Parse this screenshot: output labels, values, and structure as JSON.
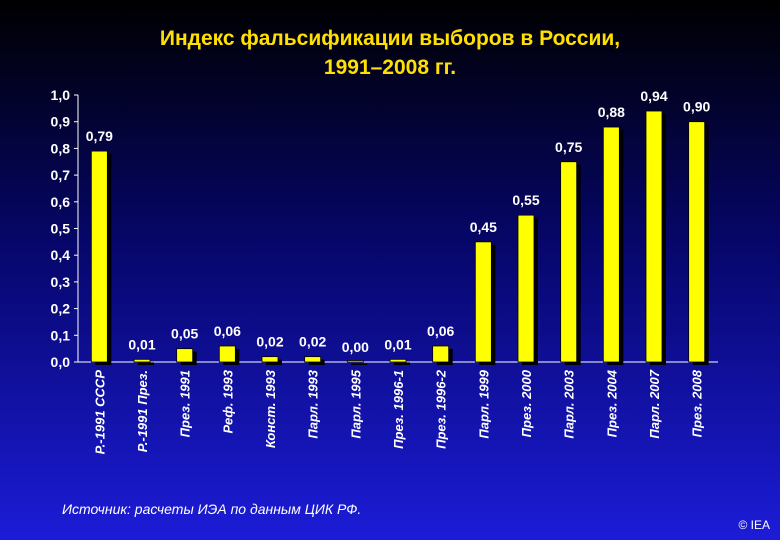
{
  "title_line1": "Индекс фальсификации выборов в России,",
  "title_line2": "1991–2008 гг.",
  "source": "Источник: расчеты ИЭА по данным ЦИК РФ.",
  "copyright": "© IEA",
  "colors": {
    "bar": "#ffff00",
    "bar_shadow": "#000000",
    "text": "#ffffff",
    "title": "#ffe000"
  },
  "chart_data": {
    "type": "bar",
    "title": "Индекс фальсификации выборов в России, 1991–2008 гг.",
    "xlabel": "",
    "ylabel": "",
    "ylim": [
      0,
      1.0
    ],
    "yticks": [
      "0,0",
      "0,1",
      "0,2",
      "0,3",
      "0,4",
      "0,5",
      "0,6",
      "0,7",
      "0,8",
      "0,9",
      "1,0"
    ],
    "grid": false,
    "categories": [
      "Р.-1991 СССР",
      "Р.-1991 През.",
      "През. 1991",
      "Реф. 1993",
      "Конст. 1993",
      "Парл. 1993",
      "Парл. 1995",
      "През. 1996-1",
      "През. 1996-2",
      "Парл. 1999",
      "През. 2000",
      "Парл. 2003",
      "През. 2004",
      "Парл. 2007",
      "През. 2008"
    ],
    "values": [
      0.79,
      0.01,
      0.05,
      0.06,
      0.02,
      0.02,
      0.0,
      0.01,
      0.06,
      0.45,
      0.55,
      0.75,
      0.88,
      0.94,
      0.9
    ],
    "data_labels": [
      "0,79",
      "0,01",
      "0,05",
      "0,06",
      "0,02",
      "0,02",
      "0,00",
      "0,01",
      "0,06",
      "0,45",
      "0,55",
      "0,75",
      "0,88",
      "0,94",
      "0,90"
    ]
  }
}
